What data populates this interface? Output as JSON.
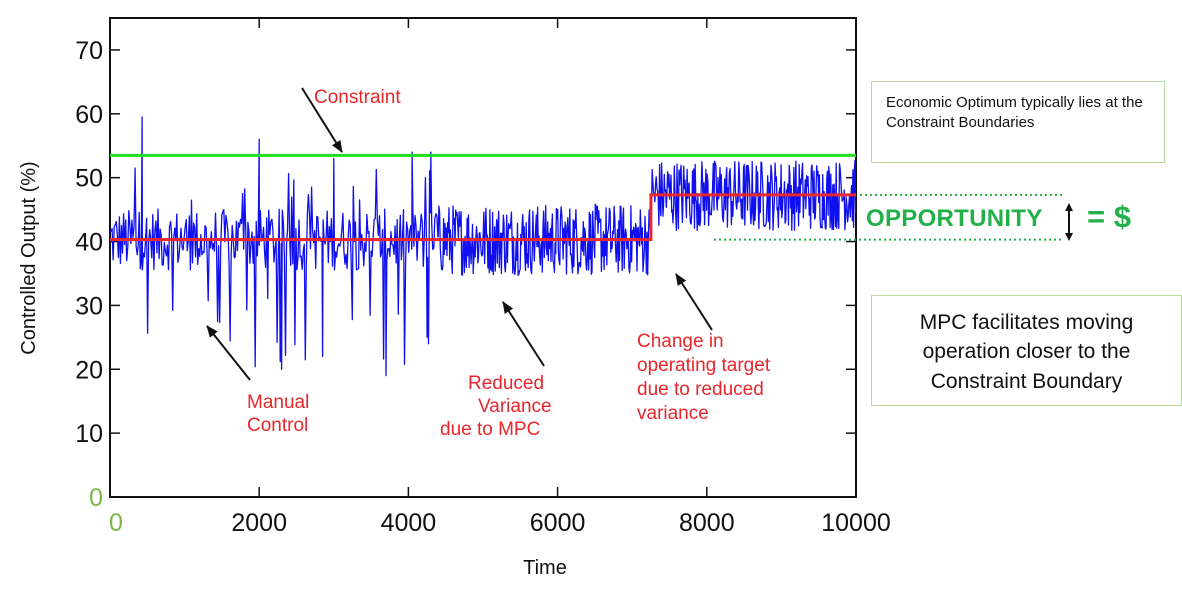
{
  "chart_data": {
    "type": "line",
    "xlabel": "Time",
    "ylabel": "Controlled Output (%)",
    "xlim": [
      0,
      10000
    ],
    "ylim": [
      0,
      75
    ],
    "x_ticks": [
      "0",
      "2000",
      "4000",
      "6000",
      "8000",
      "10000"
    ],
    "y_ticks": [
      "0",
      "10",
      "20",
      "30",
      "40",
      "50",
      "60",
      "70"
    ],
    "colors": {
      "output": "#1010ee",
      "target": "#e8262b",
      "constraint": "#22dd22",
      "opportunity": "#22b04b",
      "annotation": "#e8262b",
      "box_border": "#b7dc9b"
    },
    "constraint": {
      "value": 53.5
    },
    "target_steps": [
      {
        "x": 0,
        "y": 40.3
      },
      {
        "x": 7250,
        "y": 40.3
      },
      {
        "x": 7250,
        "y": 47.3
      },
      {
        "x": 10000,
        "y": 47.3
      }
    ],
    "output_regimes": [
      {
        "x_start": 0,
        "x_end": 4400,
        "mean": 40.3,
        "spread": 3,
        "note": "Manual Control"
      },
      {
        "x_start": 4400,
        "x_end": 7250,
        "mean": 40.3,
        "spread": 3.5,
        "note": "Reduced Variance due to MPC"
      },
      {
        "x_start": 7250,
        "x_end": 10000,
        "mean": 47.3,
        "spread": 3.5,
        "note": "Change in operating target due to reduced variance"
      }
    ],
    "output_key_points": [
      {
        "x": 430,
        "y": 59.5
      },
      {
        "x": 2000,
        "y": 56
      },
      {
        "x": 2300,
        "y": 20
      },
      {
        "x": 2850,
        "y": 22
      },
      {
        "x": 3000,
        "y": 53
      },
      {
        "x": 3700,
        "y": 19
      },
      {
        "x": 4050,
        "y": 54
      },
      {
        "x": 4300,
        "y": 54
      },
      {
        "x": 4250,
        "y": 25
      }
    ],
    "opportunity_band": {
      "upper": 47.3,
      "lower": 40.3
    }
  },
  "annotations": {
    "constraint": "Constraint",
    "manual": [
      "Manual",
      "Control"
    ],
    "reduced": [
      "Reduced",
      "Variance",
      "due to MPC"
    ],
    "change": [
      "Change in",
      "operating target",
      "due to reduced",
      "variance"
    ]
  },
  "boxes": {
    "economic": "Economic Optimum  typically lies at the Constraint Boundaries",
    "mpc": "MPC facilitates moving operation closer to the Constraint Boundary"
  },
  "opportunity": {
    "label": "OPPORTUNITY",
    "equals": "= $"
  }
}
